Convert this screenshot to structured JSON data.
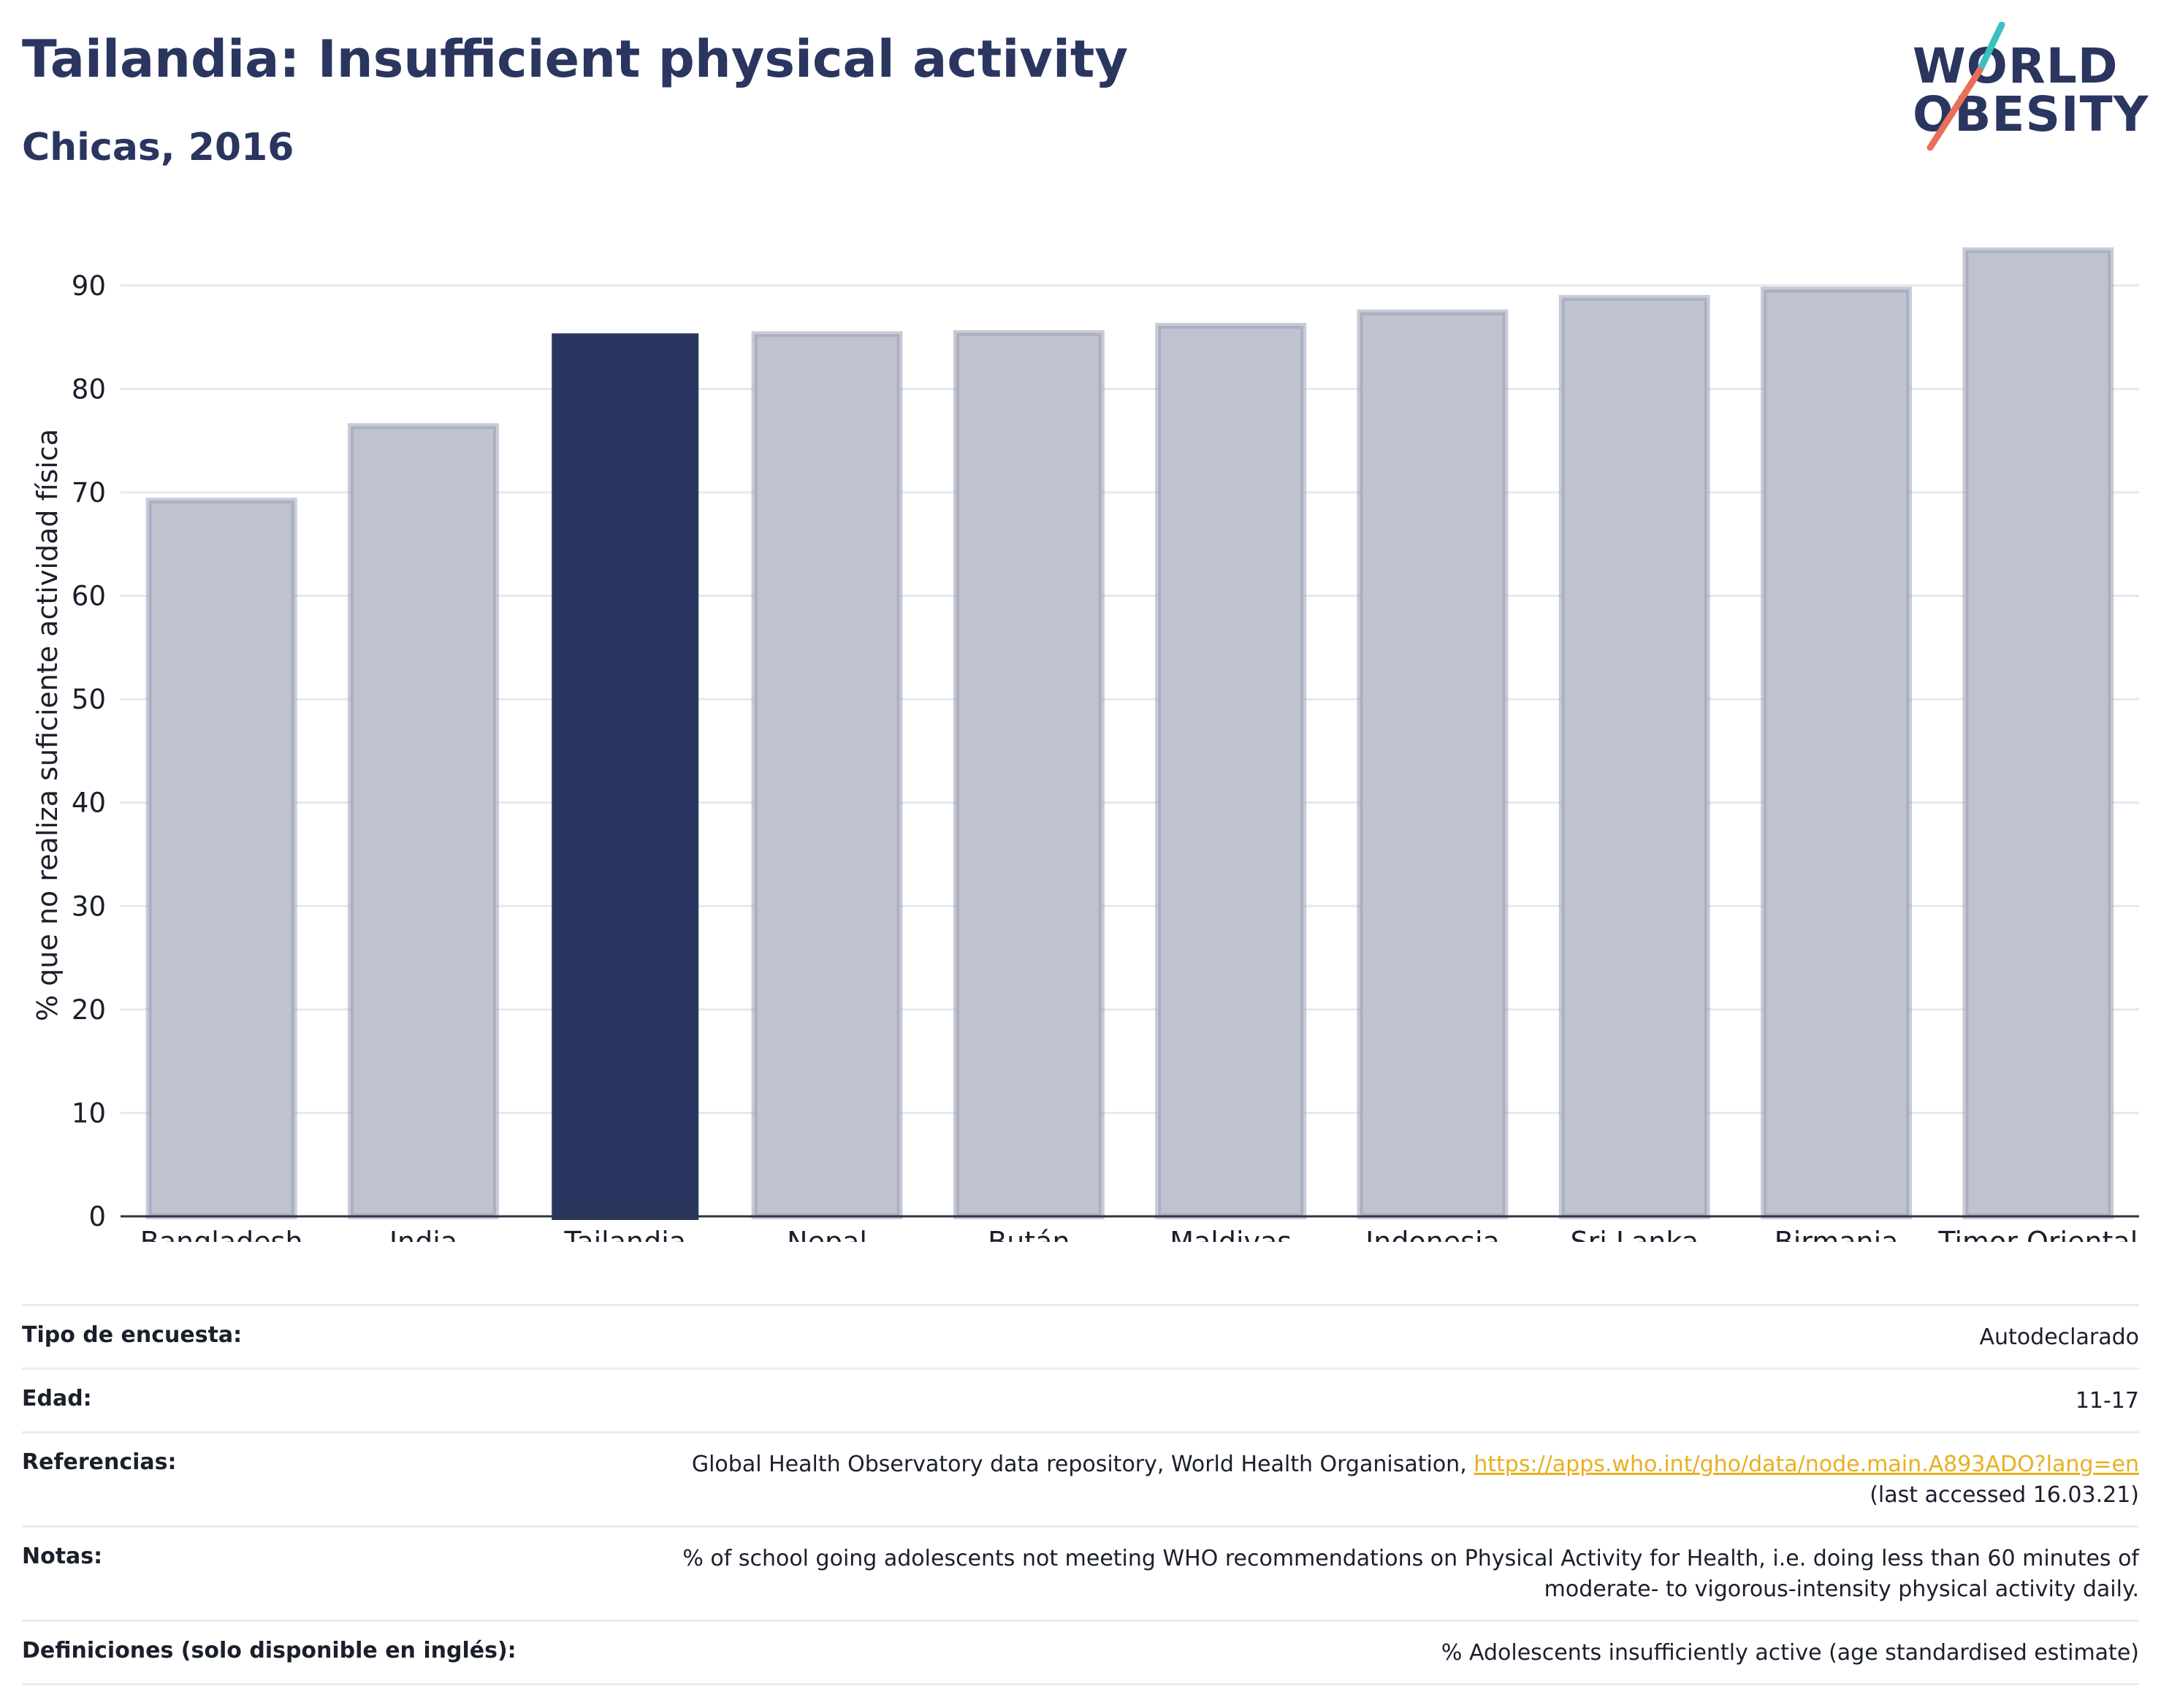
{
  "header": {
    "title": "Tailandia: Insufficient physical activity",
    "subtitle": "Chicas, 2016"
  },
  "logo": {
    "line1": "WORLD",
    "line2": "OBESITY",
    "accent_teal": "#3bbfbf",
    "accent_coral": "#e8705a"
  },
  "chart_data": {
    "type": "bar",
    "categories": [
      "Bangladesh",
      "India",
      "Tailandia",
      "Nepal",
      "Bután",
      "Maldivas",
      "Indonesia",
      "Sri Lanka",
      "Birmania",
      "Timor Oriental"
    ],
    "values": [
      69.2,
      76.4,
      85.3,
      85.3,
      85.4,
      86.1,
      87.4,
      88.8,
      89.6,
      93.4
    ],
    "highlight": "Tailandia",
    "ylabel": "% que no realiza suficiente actividad física",
    "yticks": [
      0,
      10,
      20,
      30,
      40,
      50,
      60,
      70,
      80,
      90
    ],
    "ylim": [
      0,
      95
    ],
    "grid": true,
    "colors": {
      "bar": "#bfc2cf",
      "bar_border": "#9aa0b6",
      "highlight": "#2a3560",
      "grid": "#e6e8ee",
      "axis": "#2d3545"
    }
  },
  "info": {
    "survey_type": {
      "label": "Tipo de encuesta:",
      "value": "Autodeclarado"
    },
    "age": {
      "label": "Edad:",
      "value": "11-17"
    },
    "references": {
      "label": "Referencias:",
      "text": "Global Health Observatory data repository, World Health Organisation, ",
      "link": "https://apps.who.int/gho/data/node.main.A893ADO?lang=en",
      "accessed": "(last accessed 16.03.21)"
    },
    "notes": {
      "label": "Notas:",
      "line1": "% of school going adolescents not meeting WHO recommendations on Physical Activity for Health, i.e. doing less than 60 minutes of",
      "line2": "moderate- to vigorous-intensity physical activity daily."
    },
    "definitions": {
      "label": "Definiciones (solo disponible en inglés):",
      "value": "% Adolescents insufficiently active (age standardised estimate)"
    }
  }
}
